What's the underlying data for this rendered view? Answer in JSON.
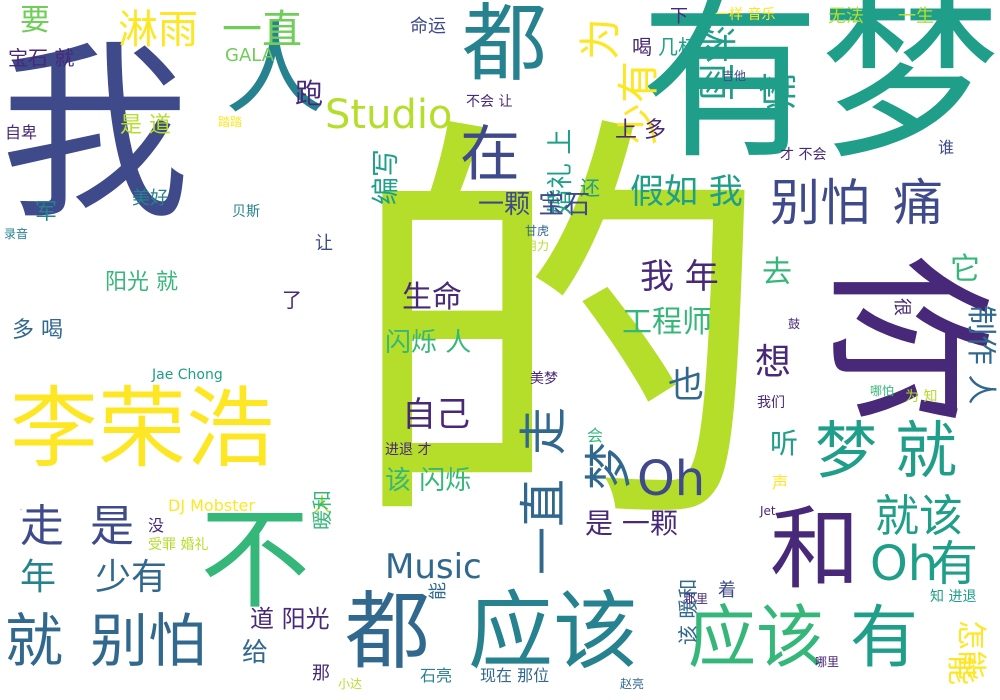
{
  "palette": {
    "indigo": "#482878",
    "blue": "#3e4a89",
    "steel": "#31688e",
    "teal": "#26828e",
    "sea": "#1f9e89",
    "green": "#35b779",
    "lime": "#6ece58",
    "yellowgreen": "#b5de2b",
    "yellow": "#fde725"
  },
  "words": [
    {
      "text": "我",
      "color": "blue"
    },
    {
      "text": "的",
      "color": "yellowgreen"
    },
    {
      "text": "有梦",
      "color": "sea"
    },
    {
      "text": "你",
      "color": "indigo"
    },
    {
      "text": "都",
      "color": "teal"
    },
    {
      "text": "人",
      "color": "teal"
    },
    {
      "text": "李荣浩",
      "color": "yellow"
    },
    {
      "text": "不",
      "color": "green"
    },
    {
      "text": "和",
      "color": "indigo"
    },
    {
      "text": "都",
      "color": "steel"
    },
    {
      "text": "应该",
      "color": "teal"
    },
    {
      "text": "应该",
      "color": "green"
    },
    {
      "text": "有",
      "color": "sea"
    },
    {
      "text": "就",
      "color": "steel"
    },
    {
      "text": "别怕",
      "color": "steel"
    },
    {
      "text": "梦",
      "color": "sea"
    },
    {
      "text": "就",
      "color": "sea"
    },
    {
      "text": "在",
      "color": "blue"
    },
    {
      "text": "淋雨",
      "color": "yellow"
    },
    {
      "text": "一直",
      "color": "lime"
    },
    {
      "text": "少有",
      "color": "yellow"
    },
    {
      "text": "为",
      "color": "yellow"
    },
    {
      "text": "淋雨",
      "color": "sea"
    },
    {
      "text": "痛",
      "color": "sea"
    },
    {
      "text": "别怕",
      "color": "blue"
    },
    {
      "text": "痛",
      "color": "blue"
    },
    {
      "text": "Studio",
      "color": "yellowgreen"
    },
    {
      "text": "一直",
      "color": "steel"
    },
    {
      "text": "梦",
      "color": "steel"
    },
    {
      "text": "走",
      "color": "steel"
    },
    {
      "text": "Oh",
      "color": "blue"
    },
    {
      "text": "Oh",
      "color": "sea"
    },
    {
      "text": "有",
      "color": "sea"
    },
    {
      "text": "走",
      "color": "blue"
    },
    {
      "text": "是",
      "color": "blue"
    },
    {
      "text": "就该",
      "color": "sea"
    },
    {
      "text": "年",
      "color": "teal"
    },
    {
      "text": "少有",
      "color": "steel"
    },
    {
      "text": "Music",
      "color": "steel"
    },
    {
      "text": "要",
      "color": "lime"
    },
    {
      "text": "跑",
      "color": "indigo"
    },
    {
      "text": "假如 我",
      "color": "sea"
    },
    {
      "text": "我 年",
      "color": "indigo"
    },
    {
      "text": "工程师",
      "color": "green"
    },
    {
      "text": "生命",
      "color": "indigo"
    },
    {
      "text": "自己",
      "color": "indigo"
    },
    {
      "text": "想",
      "color": "indigo"
    },
    {
      "text": "也",
      "color": "steel"
    },
    {
      "text": "去",
      "color": "green"
    },
    {
      "text": "它",
      "color": "green"
    },
    {
      "text": "制作 人",
      "color": "steel"
    },
    {
      "text": "能",
      "color": "yellow"
    },
    {
      "text": "编写",
      "color": "sea"
    },
    {
      "text": "婚礼 上",
      "color": "sea"
    },
    {
      "text": "还",
      "color": "sea"
    },
    {
      "text": "一颗 宝石",
      "color": "blue"
    },
    {
      "text": "是 一颗",
      "color": "indigo"
    },
    {
      "text": "该 闪烁",
      "color": "green"
    },
    {
      "text": "闪烁 人",
      "color": "green"
    },
    {
      "text": "听",
      "color": "sea"
    },
    {
      "text": "走 是",
      "color": "blue"
    },
    {
      "text": "给",
      "color": "steel"
    },
    {
      "text": "道 阳光",
      "color": "indigo"
    },
    {
      "text": "阳光 就",
      "color": "green"
    },
    {
      "text": "多 喝",
      "color": "steel"
    },
    {
      "text": "军",
      "color": "teal"
    },
    {
      "text": "美好",
      "color": "teal"
    },
    {
      "text": "是 道",
      "color": "yellowgreen"
    },
    {
      "text": "上 多",
      "color": "indigo"
    },
    {
      "text": "下",
      "color": "indigo"
    },
    {
      "text": "几杯",
      "color": "sea"
    },
    {
      "text": "喝",
      "color": "indigo"
    },
    {
      "text": "命运",
      "color": "blue"
    },
    {
      "text": "宝石 就",
      "color": "indigo"
    },
    {
      "text": "GALA",
      "color": "lime"
    },
    {
      "text": "一样 音乐",
      "color": "yellow"
    },
    {
      "text": "无法",
      "color": "yellowgreen"
    },
    {
      "text": "一生",
      "color": "yellowgreen"
    },
    {
      "text": "吉他",
      "color": "blue"
    },
    {
      "text": "不会 让",
      "color": "indigo"
    },
    {
      "text": "踏踏",
      "color": "yellow"
    },
    {
      "text": "自卑",
      "color": "indigo"
    },
    {
      "text": "才 不会",
      "color": "indigo"
    },
    {
      "text": "谁",
      "color": "blue"
    },
    {
      "text": "贝斯",
      "color": "teal"
    },
    {
      "text": "录音",
      "color": "teal"
    },
    {
      "text": "甘虎",
      "color": "steel"
    },
    {
      "text": "用力",
      "color": "yellowgreen"
    },
    {
      "text": "让",
      "color": "blue"
    },
    {
      "text": "了",
      "color": "indigo"
    },
    {
      "text": "很",
      "color": "indigo"
    },
    {
      "text": "鼓",
      "color": "indigo"
    },
    {
      "text": "Jae Chong",
      "color": "sea"
    },
    {
      "text": "美梦",
      "color": "indigo"
    },
    {
      "text": "我们",
      "color": "indigo"
    },
    {
      "text": "哪怕",
      "color": "green"
    },
    {
      "text": "为 知",
      "color": "yellowgreen"
    },
    {
      "text": "会",
      "color": "green"
    },
    {
      "text": "进退 才",
      "color": "indigo"
    },
    {
      "text": "声",
      "color": "yellow"
    },
    {
      "text": "Jet",
      "color": "indigo"
    },
    {
      "text": "DJ Mobster",
      "color": "yellow"
    },
    {
      "text": "人",
      "color": "yellowgreen"
    },
    {
      "text": "没",
      "color": "indigo"
    },
    {
      "text": "受罪 婚礼",
      "color": "yellowgreen"
    },
    {
      "text": "暖和",
      "color": "green"
    },
    {
      "text": "该 暖和",
      "color": "steel"
    },
    {
      "text": "能",
      "color": "steel"
    },
    {
      "text": "那里",
      "color": "indigo"
    },
    {
      "text": "着",
      "color": "blue"
    },
    {
      "text": "知 进退",
      "color": "sea"
    },
    {
      "text": "哪里",
      "color": "indigo"
    },
    {
      "text": "那",
      "color": "indigo"
    },
    {
      "text": "小达",
      "color": "yellowgreen"
    },
    {
      "text": "石亮",
      "color": "teal"
    },
    {
      "text": "现在 那位",
      "color": "steel"
    },
    {
      "text": "赵亮",
      "color": "steel"
    },
    {
      "text": "怎能",
      "color": "yellow"
    }
  ]
}
